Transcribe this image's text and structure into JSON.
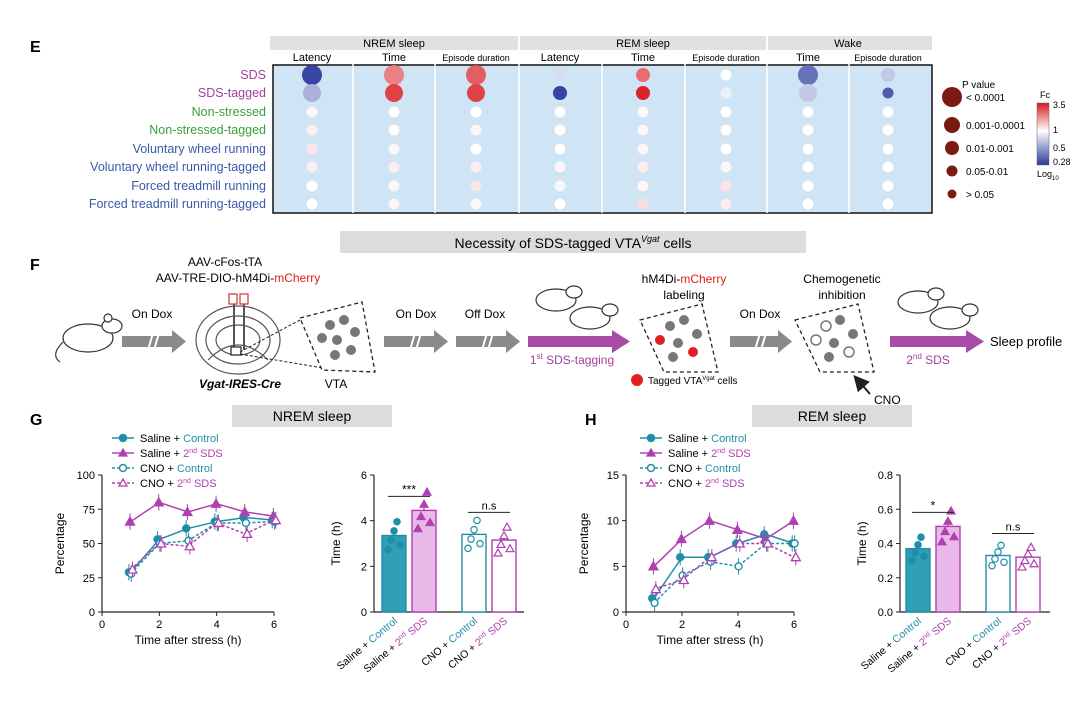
{
  "panel_e": {
    "label": "E",
    "groups": [
      "NREM sleep",
      "REM sleep",
      "Wake"
    ],
    "columns": [
      "Latency",
      "Time",
      "Episode duration",
      "Latency",
      "Time",
      "Episode duration",
      "Time",
      "Episode duration"
    ],
    "rows": [
      {
        "label": "SDS",
        "color": "#a040a0"
      },
      {
        "label": "SDS-tagged",
        "color": "#a040a0"
      },
      {
        "label": "Non-stressed",
        "color": "#3aa03a"
      },
      {
        "label": "Non-stressed-tagged",
        "color": "#3aa03a"
      },
      {
        "label": "Voluntary wheel running",
        "color": "#3a5aa8"
      },
      {
        "label": "Voluntary wheel running-tagged",
        "color": "#3a5aa8"
      },
      {
        "label": "Forced treadmill running",
        "color": "#3a5aa8"
      },
      {
        "label": "Forced treadmill running-tagged",
        "color": "#3a5aa8"
      }
    ],
    "fold_change": [
      [
        0.3,
        2.0,
        2.4,
        0.8,
        2.2,
        1.0,
        0.4,
        0.7
      ],
      [
        0.6,
        2.8,
        2.8,
        0.3,
        3.3,
        0.9,
        0.7,
        0.35
      ],
      [
        1.05,
        1.0,
        1.0,
        1.0,
        1.05,
        1.0,
        1.0,
        1.0
      ],
      [
        1.1,
        1.0,
        1.05,
        1.0,
        1.05,
        1.0,
        1.0,
        1.0
      ],
      [
        1.15,
        1.05,
        1.0,
        1.0,
        1.05,
        1.0,
        1.0,
        1.0
      ],
      [
        1.1,
        1.1,
        1.1,
        1.05,
        1.1,
        1.05,
        1.0,
        1.0
      ],
      [
        1.0,
        1.05,
        1.15,
        1.05,
        1.05,
        1.15,
        1.0,
        1.0
      ],
      [
        1.0,
        1.05,
        1.05,
        1.0,
        1.2,
        1.1,
        1.0,
        1.0
      ]
    ],
    "p_level": [
      [
        4,
        4,
        4,
        1,
        2,
        1,
        4,
        2
      ],
      [
        3,
        3,
        3,
        2,
        2,
        1,
        3,
        1
      ],
      [
        1,
        1,
        1,
        1,
        1,
        1,
        1,
        1
      ],
      [
        1,
        1,
        1,
        1,
        1,
        1,
        1,
        1
      ],
      [
        1,
        1,
        1,
        1,
        1,
        1,
        1,
        1
      ],
      [
        1,
        1,
        1,
        1,
        1,
        1,
        1,
        1
      ],
      [
        1,
        1,
        1,
        1,
        1,
        1,
        1,
        1
      ],
      [
        1,
        1,
        1,
        1,
        1,
        1,
        1,
        1
      ]
    ],
    "p_legend_title": "P value",
    "p_legend": [
      "< 0.0001",
      "0.001-0.0001",
      "0.01-0.001",
      "0.05-0.01",
      "> 0.05"
    ],
    "fc_title": "Fc",
    "fc_ticks": [
      "3.5",
      "1",
      "0.5",
      "0.28"
    ],
    "fc_log_label": "Log",
    "fc_log_sub": "10"
  },
  "panel_f": {
    "label": "F",
    "title": "Necessity of SDS-tagged VTA",
    "title_sup": "Vgat",
    "title_end": " cells",
    "virus_line1": "AAV-cFos-tTA",
    "virus_line2a": "AAV-TRE-DIO-hM4Di-",
    "virus_line2b": "mCherry",
    "mouse_line": "Vgat-IRES-Cre",
    "vta": "VTA",
    "on_dox_1": "On Dox",
    "on_dox_2": "On Dox",
    "off_dox": "Off Dox",
    "tagging_pre": "1",
    "tagging_sup": "st",
    "tagging_post": " SDS-tagging",
    "labeling_a": "hM4Di-",
    "labeling_b": "mCherry",
    "labeling_c": "labeling",
    "tagged_legend_a": "Tagged VTA",
    "tagged_legend_sup": "Vgat",
    "tagged_legend_b": " cells",
    "on_dox_3": "On Dox",
    "chemo_1": "Chemogenetic",
    "chemo_2": "inhibition",
    "cno": "CNO",
    "second_pre": "2",
    "second_sup": "nd",
    "second_post": " SDS",
    "sleep_profile": "Sleep profile"
  },
  "legend": {
    "saline": "Saline + ",
    "cno": "CNO + ",
    "control": "Control",
    "two": "2",
    "nd": "nd",
    "sds": " SDS"
  },
  "colors": {
    "teal": "#1f8fa8",
    "magenta": "#b040b0",
    "pink_fill": "#e8b8e8",
    "teal_fill": "#2f9fb8"
  },
  "panel_g": {
    "label": "G",
    "title": "NREM sleep",
    "line_chart": {
      "type": "line",
      "xlabel": "Time after stress (h)",
      "ylabel": "Percentage",
      "xlim": [
        0,
        6
      ],
      "ylim": [
        0,
        100
      ],
      "xticks": [
        0,
        2,
        4,
        6
      ],
      "yticks": [
        0,
        25,
        50,
        75,
        100
      ],
      "x": [
        1,
        2,
        3,
        4,
        5,
        6
      ],
      "series": [
        {
          "name": "Saline + Control",
          "values": [
            29,
            53,
            61,
            66,
            69,
            67
          ]
        },
        {
          "name": "Saline + 2nd SDS",
          "values": [
            66,
            80,
            73,
            79,
            73,
            70
          ]
        },
        {
          "name": "CNO + Control",
          "values": [
            28,
            50,
            52,
            65,
            65,
            66
          ]
        },
        {
          "name": "CNO + 2nd SDS",
          "values": [
            31,
            50,
            48,
            65,
            57,
            67
          ]
        }
      ]
    },
    "bar_chart": {
      "type": "bar",
      "ylabel": "Time (h)",
      "ylim": [
        0,
        6
      ],
      "yticks": [
        0,
        2,
        4,
        6
      ],
      "values": [
        3.35,
        4.45,
        3.4,
        3.15
      ],
      "sig": [
        "***",
        "n.s"
      ]
    }
  },
  "panel_h": {
    "label": "H",
    "title": "REM sleep",
    "line_chart": {
      "type": "line",
      "xlabel": "Time after stress (h)",
      "ylabel": "Percentage",
      "xlim": [
        0,
        6
      ],
      "ylim": [
        0,
        15
      ],
      "xticks": [
        0,
        2,
        4,
        6
      ],
      "yticks": [
        0,
        5,
        10,
        15
      ],
      "x": [
        1,
        2,
        3,
        4,
        5,
        6
      ],
      "series": [
        {
          "name": "Saline + Control",
          "values": [
            1.5,
            6.0,
            6.0,
            7.5,
            8.5,
            7.5
          ]
        },
        {
          "name": "Saline + 2nd SDS",
          "values": [
            5.0,
            8.0,
            10.0,
            9.0,
            8.0,
            10.0
          ]
        },
        {
          "name": "CNO + Control",
          "values": [
            1.0,
            4.0,
            5.5,
            5.0,
            7.5,
            7.5
          ]
        },
        {
          "name": "CNO + 2nd SDS",
          "values": [
            2.5,
            3.5,
            6.0,
            7.5,
            7.5,
            6.0
          ]
        }
      ]
    },
    "bar_chart": {
      "type": "bar",
      "ylabel": "Time (h)",
      "ylim": [
        0,
        0.8
      ],
      "yticks": [
        0.0,
        0.2,
        0.4,
        0.6,
        0.8
      ],
      "values": [
        0.37,
        0.5,
        0.33,
        0.32
      ],
      "sig": [
        "*",
        "n.s"
      ]
    }
  }
}
